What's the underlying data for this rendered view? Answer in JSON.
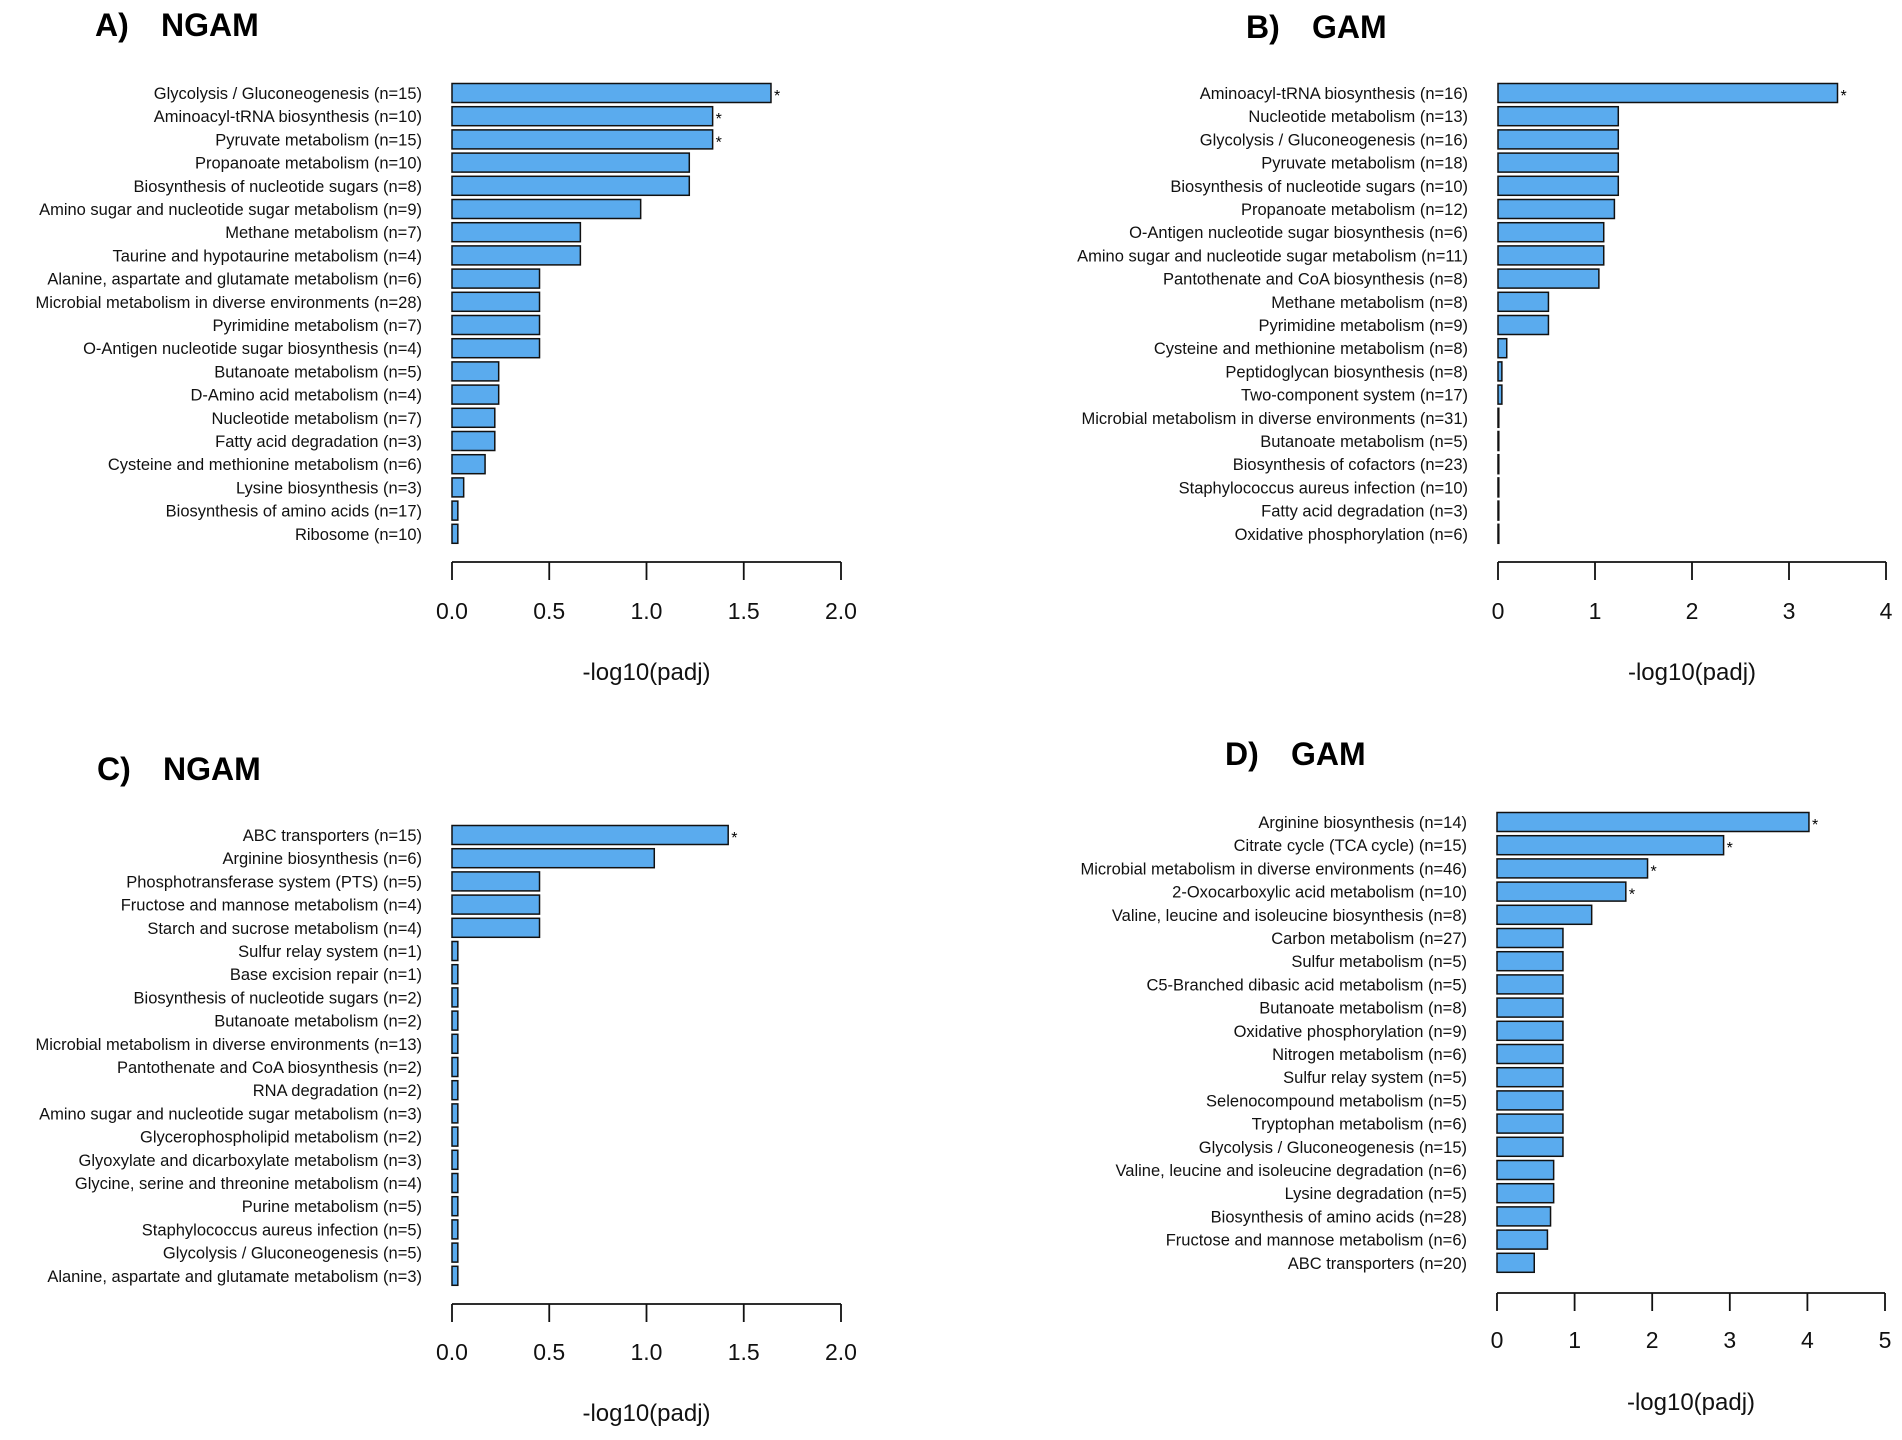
{
  "chart_data": [
    {
      "type": "bar",
      "orientation": "horizontal",
      "panel": "A)",
      "title": "NGAM",
      "xlabel": "-log10(padj)",
      "xlim": [
        0,
        2
      ],
      "xticks": [
        "0.0",
        "0.5",
        "1.0",
        "1.5",
        "2.0"
      ],
      "xtick_values": [
        0,
        0.5,
        1,
        1.5,
        2
      ],
      "bar_color": "#5aabee",
      "significance_marker": "*",
      "categories": [
        "Glycolysis / Gluconeogenesis (n=15)",
        "Aminoacyl-tRNA biosynthesis (n=10)",
        "Pyruvate metabolism (n=15)",
        "Propanoate metabolism (n=10)",
        "Biosynthesis of nucleotide sugars (n=8)",
        "Amino sugar and nucleotide sugar metabolism (n=9)",
        "Methane metabolism (n=7)",
        "Taurine and hypotaurine metabolism (n=4)",
        "Alanine, aspartate and glutamate metabolism (n=6)",
        "Microbial metabolism in diverse environments (n=28)",
        "Pyrimidine metabolism (n=7)",
        "O-Antigen nucleotide sugar biosynthesis (n=4)",
        "Butanoate metabolism (n=5)",
        "D-Amino acid metabolism (n=4)",
        "Nucleotide metabolism (n=7)",
        "Fatty acid degradation (n=3)",
        "Cysteine and methionine metabolism (n=6)",
        "Lysine biosynthesis (n=3)",
        "Biosynthesis of amino acids (n=17)",
        "Ribosome (n=10)"
      ],
      "values": [
        1.64,
        1.34,
        1.34,
        1.22,
        1.22,
        0.97,
        0.66,
        0.66,
        0.45,
        0.45,
        0.45,
        0.45,
        0.24,
        0.24,
        0.22,
        0.22,
        0.17,
        0.06,
        0.03,
        0.03
      ],
      "significant": [
        true,
        true,
        true,
        false,
        false,
        false,
        false,
        false,
        false,
        false,
        false,
        false,
        false,
        false,
        false,
        false,
        false,
        false,
        false,
        false
      ]
    },
    {
      "type": "bar",
      "orientation": "horizontal",
      "panel": "B)",
      "title": "GAM",
      "xlabel": "-log10(padj)",
      "xlim": [
        0,
        4
      ],
      "xticks": [
        "0",
        "1",
        "2",
        "3",
        "4"
      ],
      "xtick_values": [
        0,
        1,
        2,
        3,
        4
      ],
      "bar_color": "#5aabee",
      "significance_marker": "*",
      "categories": [
        "Aminoacyl-tRNA biosynthesis (n=16)",
        "Nucleotide metabolism (n=13)",
        "Glycolysis / Gluconeogenesis (n=16)",
        "Pyruvate metabolism (n=18)",
        "Biosynthesis of nucleotide sugars (n=10)",
        "Propanoate metabolism (n=12)",
        "O-Antigen nucleotide sugar biosynthesis (n=6)",
        "Amino sugar and nucleotide sugar metabolism (n=11)",
        "Pantothenate and CoA biosynthesis (n=8)",
        "Methane metabolism (n=8)",
        "Pyrimidine metabolism (n=9)",
        "Cysteine and methionine metabolism (n=8)",
        "Peptidoglycan biosynthesis (n=8)",
        "Two-component system (n=17)",
        "Microbial metabolism in diverse environments (n=31)",
        "Butanoate metabolism (n=5)",
        "Biosynthesis of cofactors (n=23)",
        "Staphylococcus aureus infection (n=10)",
        "Fatty acid degradation (n=3)",
        "Oxidative phosphorylation (n=6)"
      ],
      "values": [
        3.5,
        1.24,
        1.24,
        1.24,
        1.24,
        1.2,
        1.09,
        1.09,
        1.04,
        0.52,
        0.52,
        0.09,
        0.04,
        0.04,
        0.005,
        0.005,
        0.005,
        0.005,
        0.005,
        0.005
      ],
      "significant": [
        true,
        false,
        false,
        false,
        false,
        false,
        false,
        false,
        false,
        false,
        false,
        false,
        false,
        false,
        false,
        false,
        false,
        false,
        false,
        false
      ]
    },
    {
      "type": "bar",
      "orientation": "horizontal",
      "panel": "C)",
      "title": "NGAM",
      "xlabel": "-log10(padj)",
      "xlim": [
        0,
        2
      ],
      "xticks": [
        "0.0",
        "0.5",
        "1.0",
        "1.5",
        "2.0"
      ],
      "xtick_values": [
        0,
        0.5,
        1,
        1.5,
        2
      ],
      "bar_color": "#5aabee",
      "significance_marker": "*",
      "categories": [
        "ABC transporters (n=15)",
        "Arginine biosynthesis (n=6)",
        "Phosphotransferase system (PTS) (n=5)",
        "Fructose and mannose metabolism (n=4)",
        "Starch and sucrose metabolism (n=4)",
        "Sulfur relay system (n=1)",
        "Base excision repair (n=1)",
        "Biosynthesis of nucleotide sugars (n=2)",
        "Butanoate metabolism (n=2)",
        "Microbial metabolism in diverse environments (n=13)",
        "Pantothenate and CoA biosynthesis (n=2)",
        "RNA degradation (n=2)",
        "Amino sugar and nucleotide sugar metabolism (n=3)",
        "Glycerophospholipid metabolism (n=2)",
        "Glyoxylate and dicarboxylate metabolism (n=3)",
        "Glycine, serine and threonine metabolism (n=4)",
        "Purine metabolism (n=5)",
        "Staphylococcus aureus infection (n=5)",
        "Glycolysis / Gluconeogenesis (n=5)",
        "Alanine, aspartate and glutamate metabolism (n=3)"
      ],
      "values": [
        1.42,
        1.04,
        0.45,
        0.45,
        0.45,
        0.03,
        0.03,
        0.03,
        0.03,
        0.03,
        0.03,
        0.03,
        0.03,
        0.03,
        0.03,
        0.03,
        0.03,
        0.03,
        0.03,
        0.03
      ],
      "significant": [
        true,
        false,
        false,
        false,
        false,
        false,
        false,
        false,
        false,
        false,
        false,
        false,
        false,
        false,
        false,
        false,
        false,
        false,
        false,
        false
      ]
    },
    {
      "type": "bar",
      "orientation": "horizontal",
      "panel": "D)",
      "title": "GAM",
      "xlabel": "-log10(padj)",
      "xlim": [
        0,
        5
      ],
      "xticks": [
        "0",
        "1",
        "2",
        "3",
        "4",
        "5"
      ],
      "xtick_values": [
        0,
        1,
        2,
        3,
        4,
        5
      ],
      "bar_color": "#5aabee",
      "significance_marker": "*",
      "categories": [
        "Arginine biosynthesis (n=14)",
        "Citrate cycle (TCA cycle) (n=15)",
        "Microbial metabolism in diverse environments (n=46)",
        "2-Oxocarboxylic acid metabolism (n=10)",
        "Valine, leucine and isoleucine biosynthesis (n=8)",
        "Carbon metabolism (n=27)",
        "Sulfur metabolism (n=5)",
        "C5-Branched dibasic acid metabolism (n=5)",
        "Butanoate metabolism (n=8)",
        "Oxidative phosphorylation (n=9)",
        "Nitrogen metabolism (n=6)",
        "Sulfur relay system (n=5)",
        "Selenocompound metabolism (n=5)",
        "Tryptophan metabolism (n=6)",
        "Glycolysis / Gluconeogenesis (n=15)",
        "Valine, leucine and isoleucine degradation (n=6)",
        "Lysine degradation (n=5)",
        "Biosynthesis of amino acids (n=28)",
        "Fructose and mannose metabolism (n=6)",
        "ABC transporters (n=20)"
      ],
      "values": [
        4.02,
        2.92,
        1.94,
        1.66,
        1.22,
        0.85,
        0.85,
        0.85,
        0.85,
        0.85,
        0.85,
        0.85,
        0.85,
        0.85,
        0.85,
        0.73,
        0.73,
        0.69,
        0.65,
        0.48
      ],
      "significant": [
        true,
        true,
        true,
        true,
        false,
        false,
        false,
        false,
        false,
        false,
        false,
        false,
        false,
        false,
        false,
        false,
        false,
        false,
        false,
        false
      ]
    }
  ]
}
